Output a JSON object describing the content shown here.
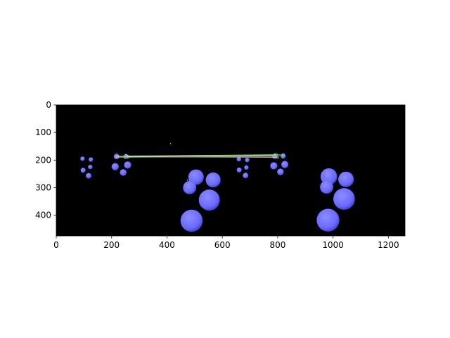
{
  "figure": {
    "background": "#ffffff",
    "image_background": "#000000",
    "blob_color": "#6a6aff",
    "blob_color_dark": "#3a3ad6",
    "match_line_colors": [
      "#3bd15a",
      "#f5d76e",
      "#9ad9ff",
      "#e07bff"
    ]
  },
  "axes": {
    "xlim": [
      0,
      1260
    ],
    "ylim": [
      475,
      0
    ],
    "xticks": [
      0,
      200,
      400,
      600,
      800,
      1000,
      1200
    ],
    "yticks": [
      0,
      100,
      200,
      300,
      400
    ],
    "xtick_labels": [
      "0",
      "200",
      "400",
      "600",
      "800",
      "1000",
      "1200"
    ],
    "ytick_labels": [
      "0",
      "100",
      "200",
      "300",
      "400"
    ]
  },
  "scene": {
    "blobs": [
      {
        "x": 95,
        "y": 195,
        "r": 8
      },
      {
        "x": 125,
        "y": 198,
        "r": 8
      },
      {
        "x": 123,
        "y": 225,
        "r": 8
      },
      {
        "x": 97,
        "y": 237,
        "r": 9
      },
      {
        "x": 117,
        "y": 257,
        "r": 10
      },
      {
        "x": 218,
        "y": 187,
        "r": 10
      },
      {
        "x": 252,
        "y": 187,
        "r": 9
      },
      {
        "x": 213,
        "y": 224,
        "r": 13
      },
      {
        "x": 258,
        "y": 218,
        "r": 13
      },
      {
        "x": 242,
        "y": 245,
        "r": 12
      },
      {
        "x": 505,
        "y": 262,
        "r": 28
      },
      {
        "x": 567,
        "y": 272,
        "r": 27
      },
      {
        "x": 482,
        "y": 300,
        "r": 24
      },
      {
        "x": 553,
        "y": 345,
        "r": 38
      },
      {
        "x": 489,
        "y": 420,
        "r": 40
      },
      {
        "x": 660,
        "y": 197,
        "r": 8
      },
      {
        "x": 690,
        "y": 200,
        "r": 8
      },
      {
        "x": 687,
        "y": 227,
        "r": 8
      },
      {
        "x": 661,
        "y": 236,
        "r": 9
      },
      {
        "x": 684,
        "y": 256,
        "r": 10
      },
      {
        "x": 790,
        "y": 186,
        "r": 10
      },
      {
        "x": 820,
        "y": 186,
        "r": 9
      },
      {
        "x": 786,
        "y": 221,
        "r": 13
      },
      {
        "x": 826,
        "y": 216,
        "r": 13
      },
      {
        "x": 810,
        "y": 243,
        "r": 12
      },
      {
        "x": 985,
        "y": 260,
        "r": 30
      },
      {
        "x": 1047,
        "y": 270,
        "r": 28
      },
      {
        "x": 977,
        "y": 298,
        "r": 24
      },
      {
        "x": 1040,
        "y": 341,
        "r": 39
      },
      {
        "x": 982,
        "y": 418,
        "r": 41
      }
    ],
    "matches": [
      {
        "x1": 218,
        "y1": 186,
        "x2": 795,
        "y2": 180
      },
      {
        "x1": 222,
        "y1": 188,
        "x2": 790,
        "y2": 183
      },
      {
        "x1": 252,
        "y1": 185,
        "x2": 820,
        "y2": 181
      },
      {
        "x1": 215,
        "y1": 190,
        "x2": 786,
        "y2": 187
      },
      {
        "x1": 248,
        "y1": 190,
        "x2": 818,
        "y2": 185
      },
      {
        "x1": 260,
        "y1": 188,
        "x2": 800,
        "y2": 190
      }
    ],
    "specks": [
      {
        "x": 413,
        "y": 140
      },
      {
        "x": 474,
        "y": 273
      }
    ]
  }
}
